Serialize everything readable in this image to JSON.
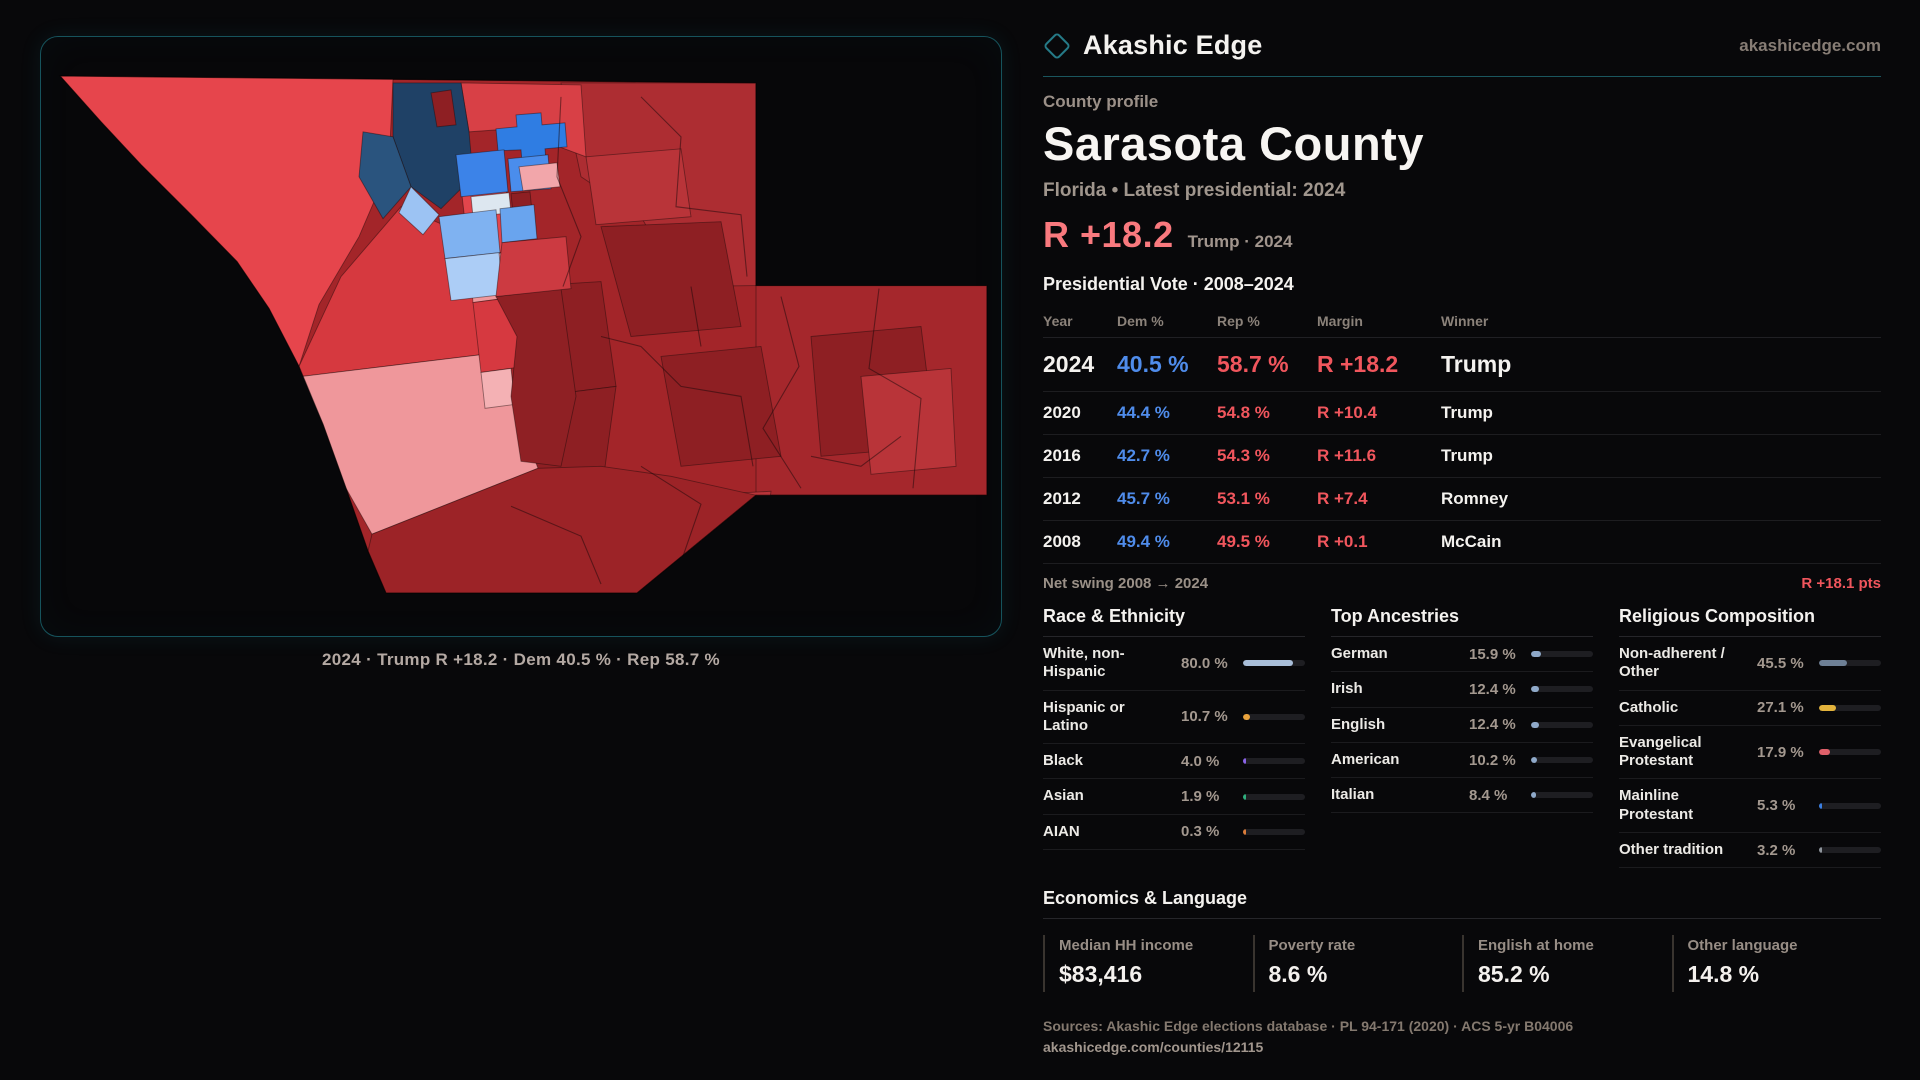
{
  "brand": {
    "name": "Akashic Edge",
    "domain": "akashicedge.com"
  },
  "profile": {
    "kicker": "County profile",
    "title": "Sarasota County",
    "subtitle": "Florida • Latest presidential: 2024",
    "headline_margin": "R +18.2",
    "headline_note": "Trump · 2024"
  },
  "map": {
    "caption": "2024 · Trump R +18.2 · Dem 40.5 % · Rep 58.7 %"
  },
  "vote_table": {
    "title": "Presidential Vote · 2008–2024",
    "columns": [
      "Year",
      "Dem %",
      "Rep %",
      "Margin",
      "Winner"
    ],
    "rows": [
      {
        "year": "2024",
        "dem": "40.5 %",
        "rep": "58.7 %",
        "margin": "R +18.2",
        "winner": "Trump",
        "highlight": true
      },
      {
        "year": "2020",
        "dem": "44.4 %",
        "rep": "54.8 %",
        "margin": "R +10.4",
        "winner": "Trump",
        "highlight": false
      },
      {
        "year": "2016",
        "dem": "42.7 %",
        "rep": "54.3 %",
        "margin": "R +11.6",
        "winner": "Trump",
        "highlight": false
      },
      {
        "year": "2012",
        "dem": "45.7 %",
        "rep": "53.1 %",
        "margin": "R +7.4",
        "winner": "Romney",
        "highlight": false
      },
      {
        "year": "2008",
        "dem": "49.4 %",
        "rep": "49.5 %",
        "margin": "R +0.1",
        "winner": "McCain",
        "highlight": false
      }
    ],
    "net_swing_label": "Net swing 2008 → 2024",
    "net_swing_value": "R +18.1 pts"
  },
  "demographics": {
    "race": {
      "title": "Race & Ethnicity",
      "rows": [
        {
          "label": "White, non-Hispanic",
          "value": "80.0 %",
          "pct": 80.0,
          "color": "#a9bed9"
        },
        {
          "label": "Hispanic or Latino",
          "value": "10.7 %",
          "pct": 10.7,
          "color": "#e8a23c"
        },
        {
          "label": "Black",
          "value": "4.0 %",
          "pct": 4.0,
          "color": "#8a63e8"
        },
        {
          "label": "Asian",
          "value": "1.9 %",
          "pct": 1.9,
          "color": "#2fae7d"
        },
        {
          "label": "AIAN",
          "value": "0.3 %",
          "pct": 0.3,
          "color": "#d97c3a"
        }
      ]
    },
    "ancestries": {
      "title": "Top Ancestries",
      "rows": [
        {
          "label": "German",
          "value": "15.9 %",
          "pct": 15.9,
          "color": "#8fa9c9"
        },
        {
          "label": "Irish",
          "value": "12.4 %",
          "pct": 12.4,
          "color": "#8fa9c9"
        },
        {
          "label": "English",
          "value": "12.4 %",
          "pct": 12.4,
          "color": "#8fa9c9"
        },
        {
          "label": "American",
          "value": "10.2 %",
          "pct": 10.2,
          "color": "#8fa9c9"
        },
        {
          "label": "Italian",
          "value": "8.4 %",
          "pct": 8.4,
          "color": "#8fa9c9"
        }
      ]
    },
    "religion": {
      "title": "Religious Composition",
      "rows": [
        {
          "label": "Non-adherent / Other",
          "value": "45.5 %",
          "pct": 45.5,
          "color": "#6e8096"
        },
        {
          "label": "Catholic",
          "value": "27.1 %",
          "pct": 27.1,
          "color": "#e3b33c"
        },
        {
          "label": "Evangelical Protestant",
          "value": "17.9 %",
          "pct": 17.9,
          "color": "#e0606a"
        },
        {
          "label": "Mainline Protestant",
          "value": "5.3 %",
          "pct": 5.3,
          "color": "#3b7fe2"
        },
        {
          "label": "Other tradition",
          "value": "3.2 %",
          "pct": 3.2,
          "color": "#8f959c"
        }
      ]
    }
  },
  "economics": {
    "title": "Economics & Language",
    "stats": [
      {
        "label": "Median HH income",
        "value": "$83,416"
      },
      {
        "label": "Poverty rate",
        "value": "8.6 %"
      },
      {
        "label": "English at home",
        "value": "85.2 %"
      },
      {
        "label": "Other language",
        "value": "14.8 %"
      }
    ]
  },
  "footer": {
    "sources": "Sources: Akashic Edge elections database · PL 94-171 (2020) · ACS 5-yr B04006",
    "permalink": "akashicedge.com/counties/12115"
  },
  "chart_data": [
    {
      "type": "table",
      "title": "Presidential Vote · 2008–2024",
      "columns": [
        "Year",
        "Dem %",
        "Rep %",
        "Margin",
        "Winner"
      ],
      "rows": [
        [
          2024,
          40.5,
          58.7,
          "R +18.2",
          "Trump"
        ],
        [
          2020,
          44.4,
          54.8,
          "R +10.4",
          "Trump"
        ],
        [
          2016,
          42.7,
          54.3,
          "R +11.6",
          "Trump"
        ],
        [
          2012,
          45.7,
          53.1,
          "R +7.4",
          "Romney"
        ],
        [
          2008,
          49.4,
          49.5,
          "R +0.1",
          "McCain"
        ]
      ],
      "annotations": [
        "Net swing 2008 → 2024: R +18.1 pts"
      ]
    },
    {
      "type": "bar",
      "title": "Race & Ethnicity",
      "categories": [
        "White, non-Hispanic",
        "Hispanic or Latino",
        "Black",
        "Asian",
        "AIAN"
      ],
      "values": [
        80.0,
        10.7,
        4.0,
        1.9,
        0.3
      ],
      "xlabel": "",
      "ylabel": "%",
      "ylim": [
        0,
        100
      ]
    },
    {
      "type": "bar",
      "title": "Top Ancestries",
      "categories": [
        "German",
        "Irish",
        "English",
        "American",
        "Italian"
      ],
      "values": [
        15.9,
        12.4,
        12.4,
        10.2,
        8.4
      ],
      "xlabel": "",
      "ylabel": "%",
      "ylim": [
        0,
        100
      ]
    },
    {
      "type": "bar",
      "title": "Religious Composition",
      "categories": [
        "Non-adherent / Other",
        "Catholic",
        "Evangelical Protestant",
        "Mainline Protestant",
        "Other tradition"
      ],
      "values": [
        45.5,
        27.1,
        17.9,
        5.3,
        3.2
      ],
      "xlabel": "",
      "ylabel": "%",
      "ylim": [
        0,
        100
      ]
    }
  ]
}
